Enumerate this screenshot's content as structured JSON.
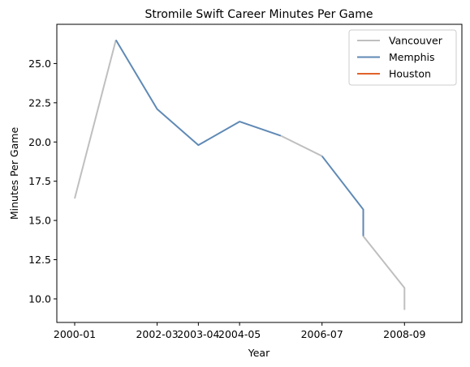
{
  "chart_data": {
    "type": "line",
    "title": "Stromile Swift Career Minutes Per Game",
    "xlabel": "Year",
    "ylabel": "Minutes Per Game",
    "x_ticks": [
      "2000-01",
      "2002-03",
      "2003-04",
      "2004-05",
      "2006-07",
      "2008-09"
    ],
    "y_ticks": [
      "10.0",
      "12.5",
      "15.0",
      "17.5",
      "20.0",
      "22.5",
      "25.0"
    ],
    "ylim": [
      8.5,
      27.5
    ],
    "grid": false,
    "legend_position": "top-right",
    "series": [
      {
        "name": "Vancouver",
        "color": "#bfbfbf",
        "points": [
          {
            "x": "2000-01",
            "y": 16.4
          },
          {
            "x": "2001-02",
            "y": 26.5
          }
        ]
      },
      {
        "name": "Memphis",
        "color": "#5f89b5",
        "points": [
          {
            "x": "2001-02",
            "y": 26.5
          },
          {
            "x": "2002-03",
            "y": 22.1
          },
          {
            "x": "2003-04",
            "y": 19.8
          },
          {
            "x": "2004-05",
            "y": 21.3
          },
          {
            "x": "2005-06",
            "y": 20.4
          }
        ]
      },
      {
        "name": "Vancouver",
        "color": "#bfbfbf",
        "points": [
          {
            "x": "2005-06",
            "y": 20.4
          },
          {
            "x": "2006-07",
            "y": 19.1
          }
        ]
      },
      {
        "name": "Memphis",
        "color": "#5f89b5",
        "points": [
          {
            "x": "2006-07",
            "y": 19.1
          },
          {
            "x": "2007-08",
            "y": 15.7
          },
          {
            "x": "2007-08",
            "y": 14.0
          }
        ]
      },
      {
        "name": "Vancouver",
        "color": "#bfbfbf",
        "points": [
          {
            "x": "2007-08",
            "y": 14.0
          },
          {
            "x": "2008-09",
            "y": 10.7
          },
          {
            "x": "2008-09",
            "y": 9.3
          }
        ]
      }
    ],
    "legend": [
      {
        "name": "Vancouver",
        "color": "#bfbfbf"
      },
      {
        "name": "Memphis",
        "color": "#5f89b5"
      },
      {
        "name": "Houston",
        "color": "#e1622a"
      }
    ]
  }
}
